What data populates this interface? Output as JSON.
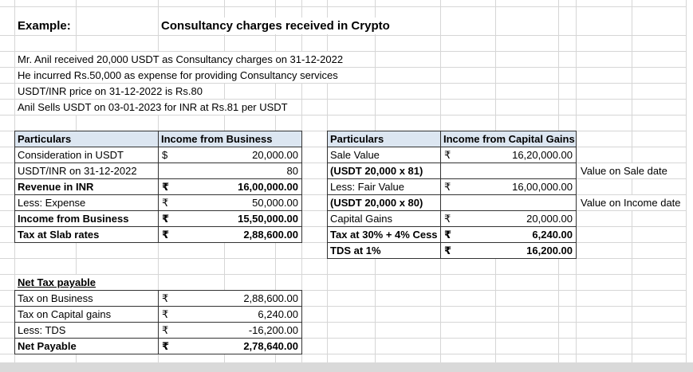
{
  "header": {
    "example_label": "Example:",
    "title": "Consultancy charges received in Crypto"
  },
  "description_lines": [
    "Mr. Anil received 20,000 USDT as Consultancy charges on 31-12-2022",
    "He incurred Rs.50,000 as expense for providing Consultancy services",
    "USDT/INR price on 31-12-2022 is Rs.80",
    "Anil Sells USDT on 03-01-2023 for INR at Rs.81 per USDT"
  ],
  "business_table": {
    "headers": [
      "Particulars",
      "Income from Business"
    ],
    "rows": [
      {
        "label": "Consideration in USDT",
        "currency": "$",
        "value": "20,000.00"
      },
      {
        "label": "USDT/INR on 31-12-2022",
        "currency": "",
        "value": "80"
      },
      {
        "label": "Revenue in INR",
        "currency": "₹",
        "value": "16,00,000.00"
      },
      {
        "label": "Less: Expense",
        "currency": "₹",
        "value": "50,000.00"
      },
      {
        "label": "Income from Business",
        "currency": "₹",
        "value": "15,50,000.00"
      },
      {
        "label": "Tax at Slab rates",
        "currency": "₹",
        "value": "2,88,600.00"
      }
    ]
  },
  "capital_gains_table": {
    "headers": [
      "Particulars",
      "Income from Capital Gains"
    ],
    "rows": [
      {
        "label": "Sale Value",
        "currency": "₹",
        "value": "16,20,000.00",
        "note": ""
      },
      {
        "label": "(USDT 20,000 x 81)",
        "currency": "",
        "value": "",
        "note": "Value on Sale date"
      },
      {
        "label": "Less: Fair Value",
        "currency": "₹",
        "value": "16,00,000.00",
        "note": ""
      },
      {
        "label": "(USDT 20,000 x 80)",
        "currency": "",
        "value": "",
        "note": "Value on Income date"
      },
      {
        "label": "Capital Gains",
        "currency": "₹",
        "value": "20,000.00",
        "note": ""
      },
      {
        "label": "Tax at 30% + 4% Cess",
        "currency": "₹",
        "value": "6,240.00",
        "note": ""
      },
      {
        "label": "TDS at 1%",
        "currency": "₹",
        "value": "16,200.00",
        "note": ""
      }
    ]
  },
  "net_tax_table": {
    "title": "Net Tax payable",
    "rows": [
      {
        "label": "Tax on Business",
        "currency": "₹",
        "value": "2,88,600.00"
      },
      {
        "label": "Tax on Capital gains",
        "currency": "₹",
        "value": "6,240.00"
      },
      {
        "label": "Less: TDS",
        "currency": "₹",
        "value": "-16,200.00"
      },
      {
        "label": "Net Payable",
        "currency": "₹",
        "value": "2,78,640.00"
      }
    ]
  },
  "colors": {
    "table_header_bg": "#dce6f1",
    "table_border": "#333333",
    "gridline": "#d6d6d6",
    "bottom_strip": "#d9d9d9"
  }
}
